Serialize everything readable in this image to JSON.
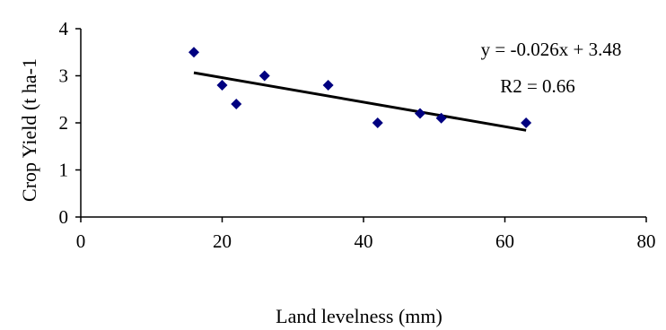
{
  "chart_data": {
    "type": "scatter",
    "xlabel": "Land levelness (mm)",
    "ylabel": "Crop Yield (t ha-1",
    "xlim": [
      0,
      80
    ],
    "ylim": [
      0,
      4
    ],
    "xticks": [
      0,
      20,
      40,
      60,
      80
    ],
    "yticks": [
      0,
      1,
      2,
      3,
      4
    ],
    "grid": false,
    "marker_color": "#000080",
    "series": [
      {
        "x": [
          16,
          20,
          22,
          26,
          35,
          42,
          48,
          51,
          63
        ],
        "y": [
          3.5,
          2.8,
          2.4,
          3.0,
          2.8,
          2.0,
          2.2,
          2.1,
          2.0
        ]
      }
    ],
    "trendline": {
      "slope": -0.026,
      "intercept": 3.48,
      "x_range": [
        16,
        63
      ]
    },
    "annotations": {
      "equation": "y = -0.026x + 3.48",
      "r2": "R2 = 0.66"
    }
  }
}
